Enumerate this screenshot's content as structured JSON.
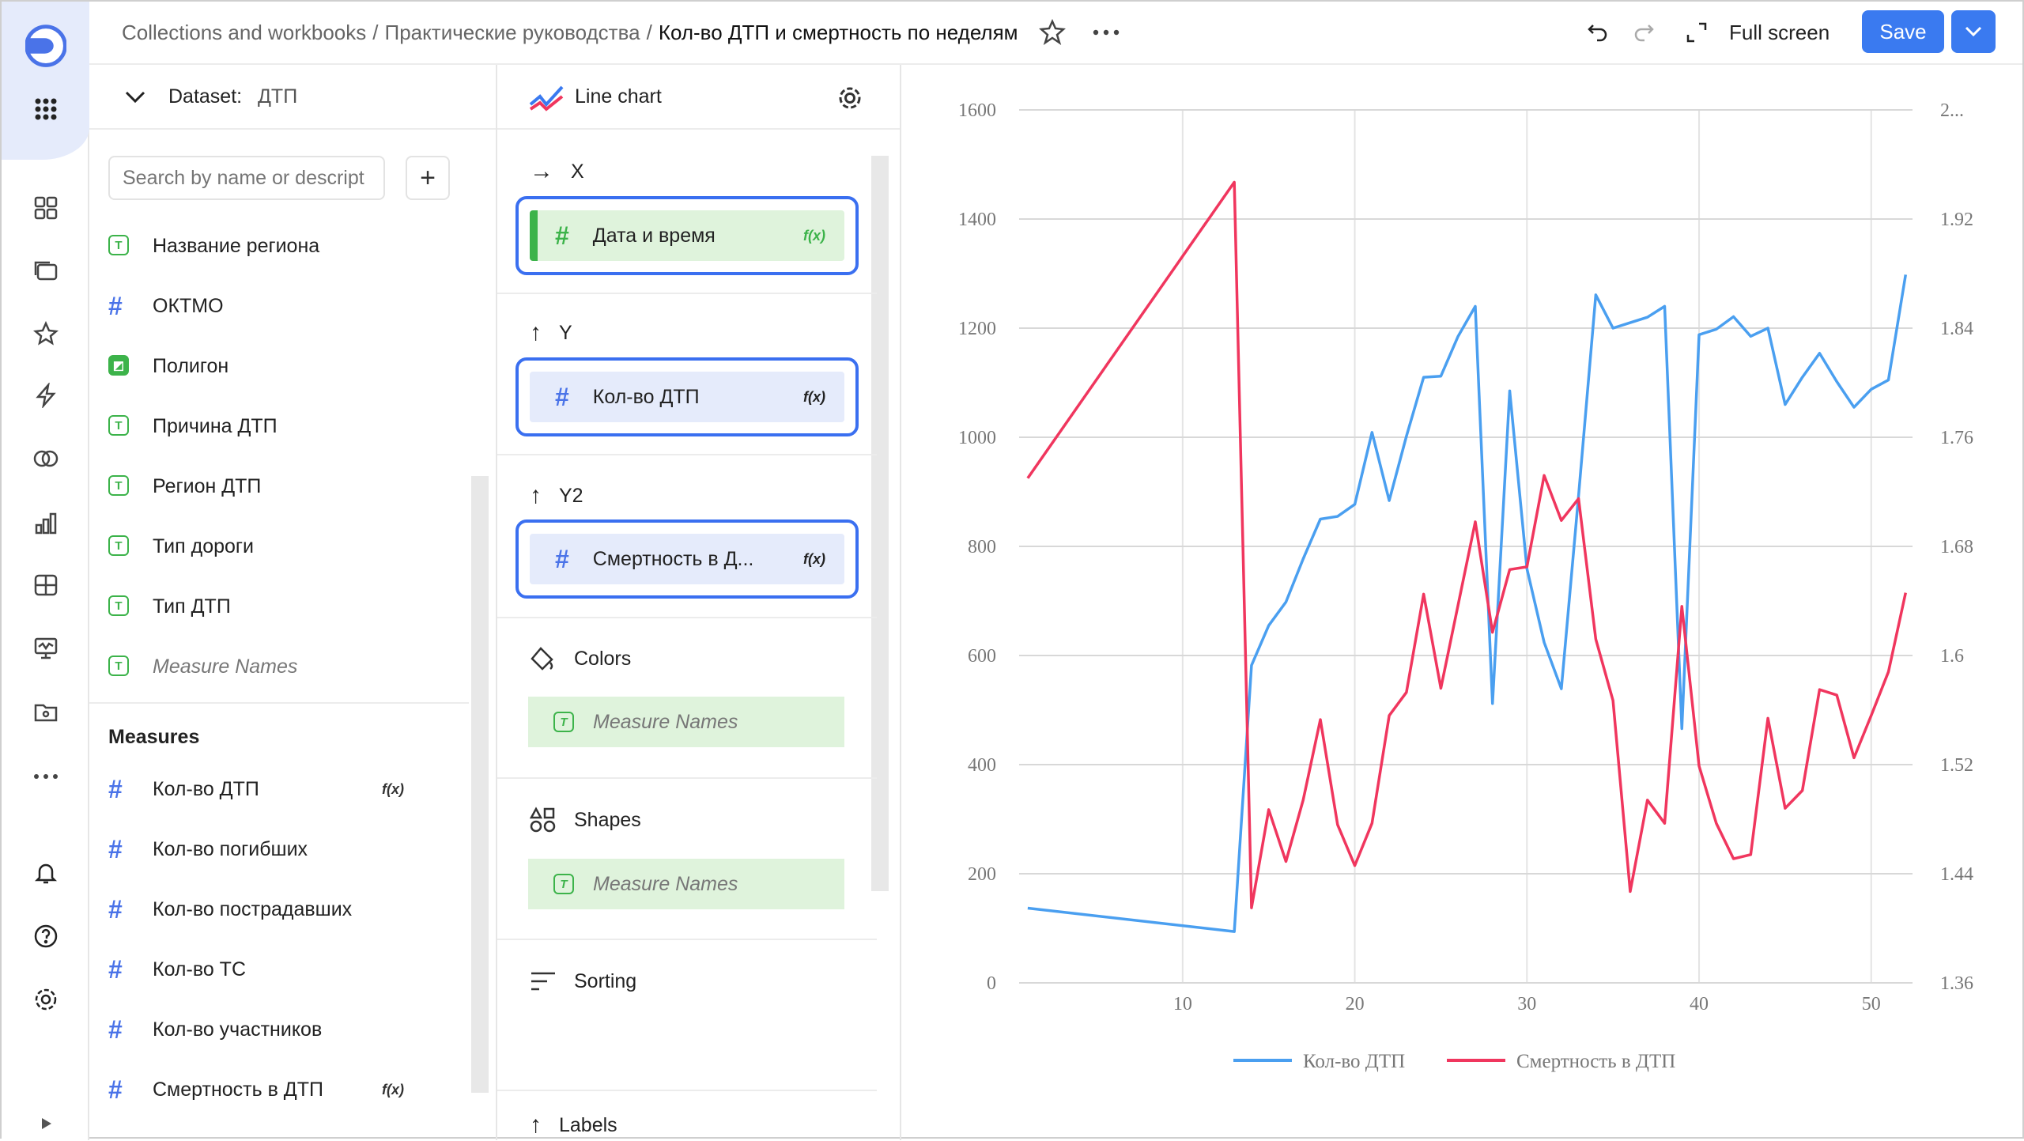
{
  "breadcrumb": [
    "Collections and workbooks",
    "Практические руководства",
    "Кол-во ДТП и смертность по неделям"
  ],
  "topbar": {
    "fullscreen_label": "Full screen",
    "save_label": "Save"
  },
  "dataset": {
    "label": "Dataset:",
    "name": "ДТП",
    "search_placeholder": "Search by name or descript",
    "dimensions": [
      {
        "label": "Название региона",
        "type": "text"
      },
      {
        "label": "ОКТМО",
        "type": "number"
      },
      {
        "label": "Полигон",
        "type": "geo"
      },
      {
        "label": "Причина ДТП",
        "type": "text"
      },
      {
        "label": "Регион ДТП",
        "type": "text"
      },
      {
        "label": "Тип дороги",
        "type": "text"
      },
      {
        "label": "Тип ДТП",
        "type": "text"
      },
      {
        "label": "Measure Names",
        "type": "text",
        "italic": true
      }
    ],
    "measures_title": "Measures",
    "measures": [
      {
        "label": "Кол-во ДТП",
        "fx": true
      },
      {
        "label": "Кол-во погибших",
        "fx": false
      },
      {
        "label": "Кол-во пострадавших",
        "fx": false
      },
      {
        "label": "Кол-во ТС",
        "fx": false
      },
      {
        "label": "Кол-во участников",
        "fx": false
      },
      {
        "label": "Смертность в ДТП",
        "fx": true
      }
    ],
    "fx_label": "f(x)"
  },
  "wizard": {
    "chart_type": "Line chart",
    "x": {
      "label": "X",
      "field": "Дата и время"
    },
    "y": {
      "label": "Y",
      "field": "Кол-во ДТП"
    },
    "y2": {
      "label": "Y2",
      "field": "Смертность в Д..."
    },
    "colors": {
      "label": "Colors",
      "field": "Measure Names"
    },
    "shapes": {
      "label": "Shapes",
      "field": "Measure Names"
    },
    "sorting": {
      "label": "Sorting"
    },
    "labels": {
      "label": "Labels"
    }
  },
  "colors": {
    "accent": "#3a6ff0",
    "blue_series": "#4a9ff0",
    "red_series": "#f0365e",
    "green": "#3cb34a"
  },
  "chart_data": {
    "type": "line",
    "x": [
      1,
      13,
      14,
      15,
      16,
      17,
      18,
      19,
      20,
      21,
      22,
      23,
      24,
      25,
      26,
      27,
      28,
      29,
      30,
      31,
      32,
      33,
      34,
      35,
      36,
      37,
      38,
      39,
      40,
      41,
      42,
      43,
      44,
      45,
      46,
      47,
      48,
      49,
      50,
      51,
      52
    ],
    "xticks": [
      10,
      20,
      30,
      40,
      50
    ],
    "xlim": [
      0.5,
      52.4
    ],
    "ylim": [
      0,
      1600
    ],
    "yticks": [
      0,
      200,
      400,
      600,
      800,
      1000,
      1200,
      1400,
      1600
    ],
    "y2lim": [
      1.36,
      2.0
    ],
    "y2ticks": [
      "1.36",
      "1.44",
      "1.52",
      "1.6",
      "1.68",
      "1.76",
      "1.84",
      "1.92",
      "2..."
    ],
    "y2tick_values": [
      1.36,
      1.44,
      1.52,
      1.6,
      1.68,
      1.76,
      1.84,
      1.92,
      2.0
    ],
    "grid": true,
    "legend_position": "bottom",
    "series": [
      {
        "name": "Кол-во ДТП",
        "axis": "left",
        "color": "#4a9ff0",
        "values": [
          137,
          94,
          582,
          655,
          698,
          777,
          850,
          855,
          877,
          1009,
          884,
          1002,
          1110,
          1112,
          1185,
          1240,
          512,
          1085,
          759,
          624,
          539,
          893,
          1261,
          1200,
          1210,
          1220,
          1240,
          466,
          1188,
          1198,
          1221,
          1185,
          1200,
          1060,
          1110,
          1154,
          1102,
          1055,
          1088,
          1105,
          1298
        ]
      },
      {
        "name": "Смертность в ДТП",
        "axis": "right",
        "color": "#f0365e",
        "values": [
          1.73,
          1.947,
          1.415,
          1.487,
          1.449,
          1.494,
          1.553,
          1.476,
          1.446,
          1.477,
          1.556,
          1.573,
          1.645,
          1.576,
          1.637,
          1.698,
          1.617,
          1.663,
          1.665,
          1.732,
          1.699,
          1.715,
          1.612,
          1.567,
          1.427,
          1.494,
          1.477,
          1.636,
          1.519,
          1.477,
          1.451,
          1.454,
          1.554,
          1.488,
          1.501,
          1.575,
          1.571,
          1.525,
          1.556,
          1.588,
          1.646
        ]
      }
    ]
  }
}
